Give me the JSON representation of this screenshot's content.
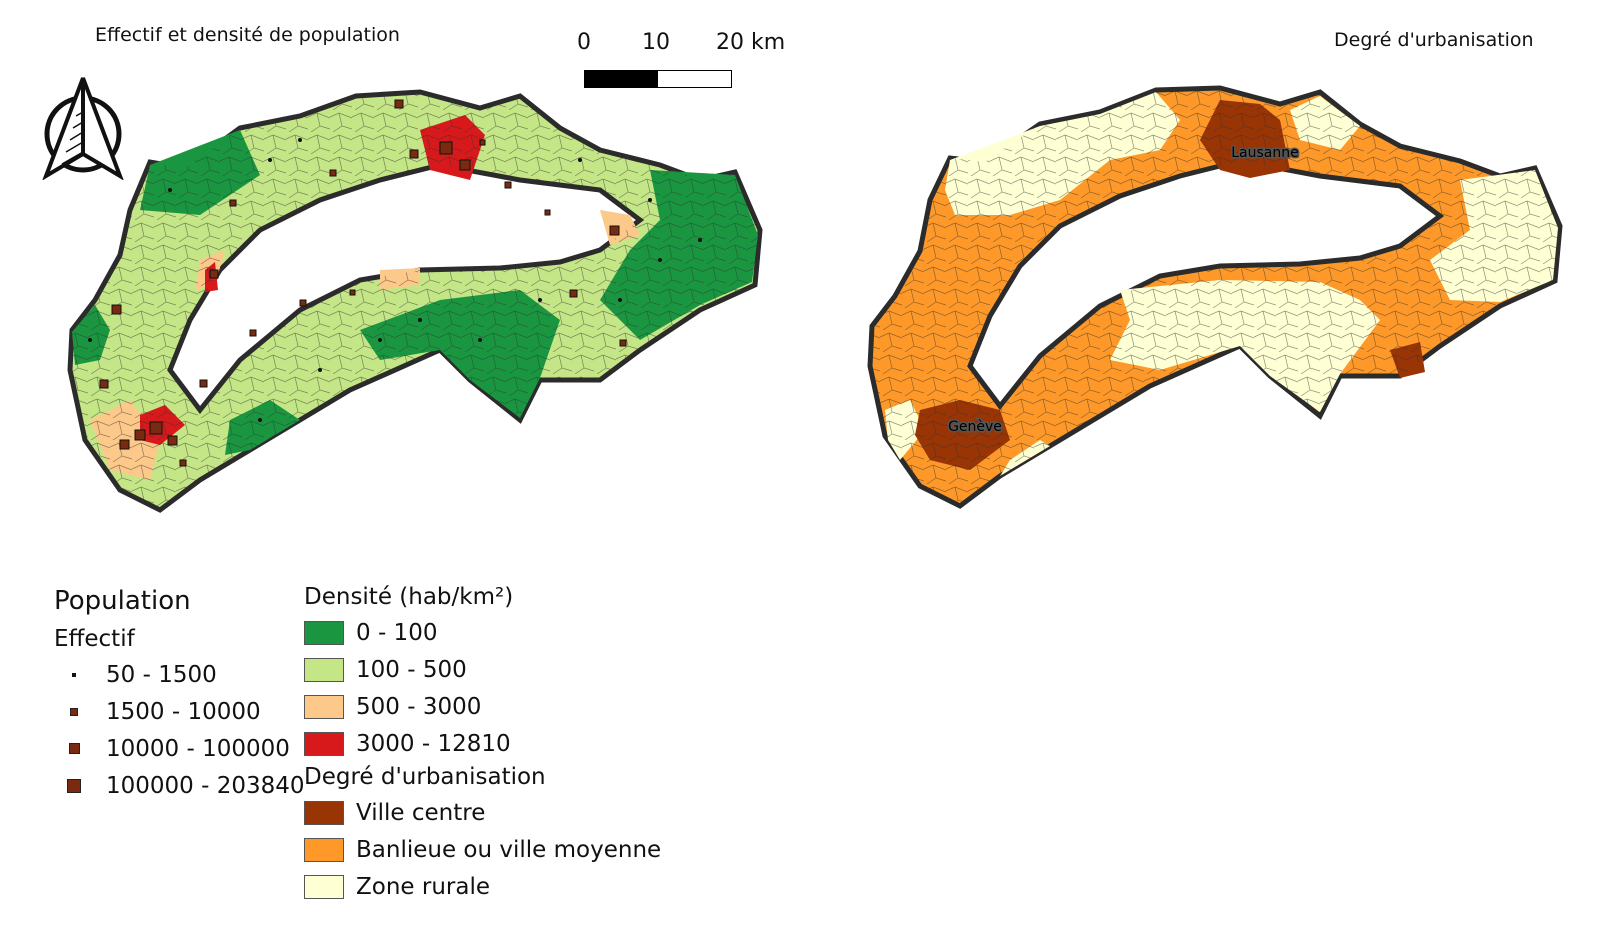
{
  "left_map": {
    "title": "Effectif et densité de population",
    "scale_labels": [
      "0",
      "10",
      "20 km"
    ]
  },
  "right_map": {
    "title": "Degré d'urbanisation",
    "city_labels": [
      "Lausanne",
      "Genève"
    ]
  },
  "legend": {
    "population": {
      "title": "Population",
      "subtitle": "Effectif",
      "items": [
        {
          "label": "50 - 1500",
          "size_rank": 1
        },
        {
          "label": "1500 - 10000",
          "size_rank": 2
        },
        {
          "label": "10000 - 100000",
          "size_rank": 3
        },
        {
          "label": "100000 - 203840",
          "size_rank": 4
        }
      ]
    },
    "density": {
      "title": "Densité (hab/km²)",
      "items": [
        {
          "label": "0 - 100",
          "color": "#1a9641"
        },
        {
          "label": "100 - 500",
          "color": "#c4e687"
        },
        {
          "label": "500 - 3000",
          "color": "#fdc98a"
        },
        {
          "label": "3000 - 12810",
          "color": "#d7191c"
        }
      ]
    },
    "urbanisation": {
      "title": "Degré d'urbanisation",
      "items": [
        {
          "label": "Ville centre",
          "color": "#993404"
        },
        {
          "label": "Banlieue ou ville moyenne",
          "color": "#fe9929"
        },
        {
          "label": "Zone rurale",
          "color": "#ffffd4"
        }
      ]
    }
  },
  "colors": {
    "outline": "#2b2b2b",
    "lake": "#ffffff"
  }
}
